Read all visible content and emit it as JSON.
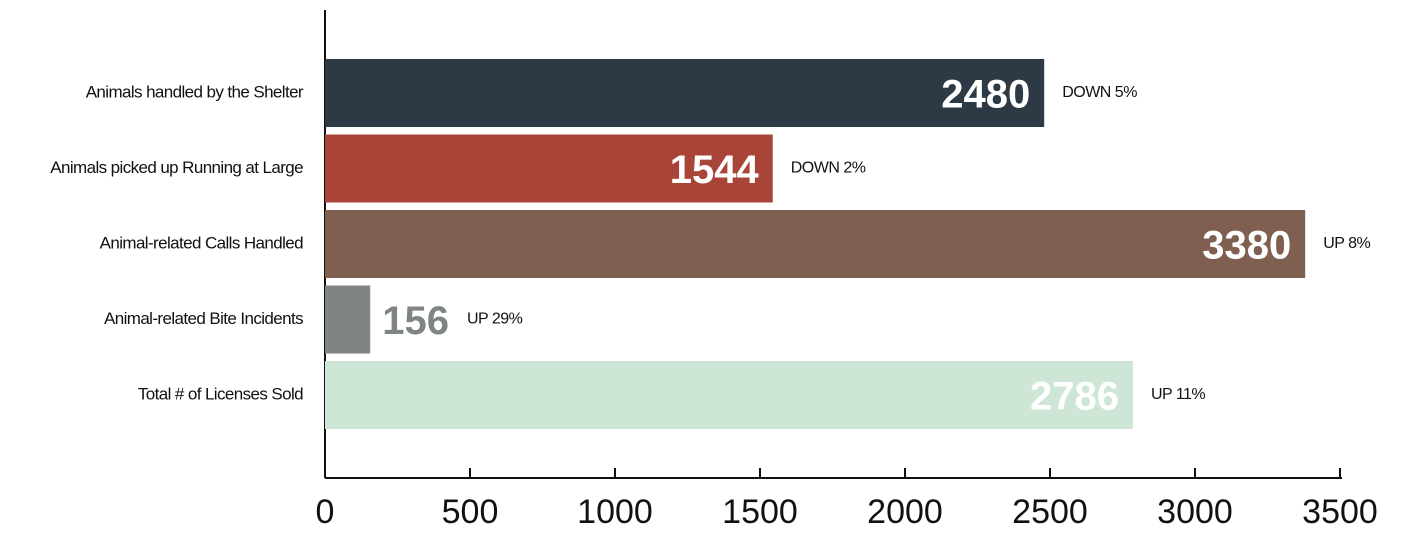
{
  "chart_data": {
    "type": "barh",
    "categories": [
      "Animals handled by the Shelter",
      "Animals picked up Running at Large",
      "Animal-related Calls Handled",
      "Animal-related Bite Incidents",
      "Total # of  Licenses Sold"
    ],
    "values": [
      2480,
      1544,
      3380,
      156,
      2786
    ],
    "colors": [
      "#2d3a46",
      "#a84438",
      "#7f6050",
      "#7f8582",
      "#cde6d6"
    ],
    "annotations": [
      "DOWN 5%",
      "DOWN 2%",
      "UP 8%",
      "UP 29%",
      "UP 11%"
    ],
    "xlim": [
      0,
      3500
    ],
    "xticks": [
      0,
      500,
      1000,
      1500,
      2000,
      2500,
      3000,
      3500
    ]
  }
}
